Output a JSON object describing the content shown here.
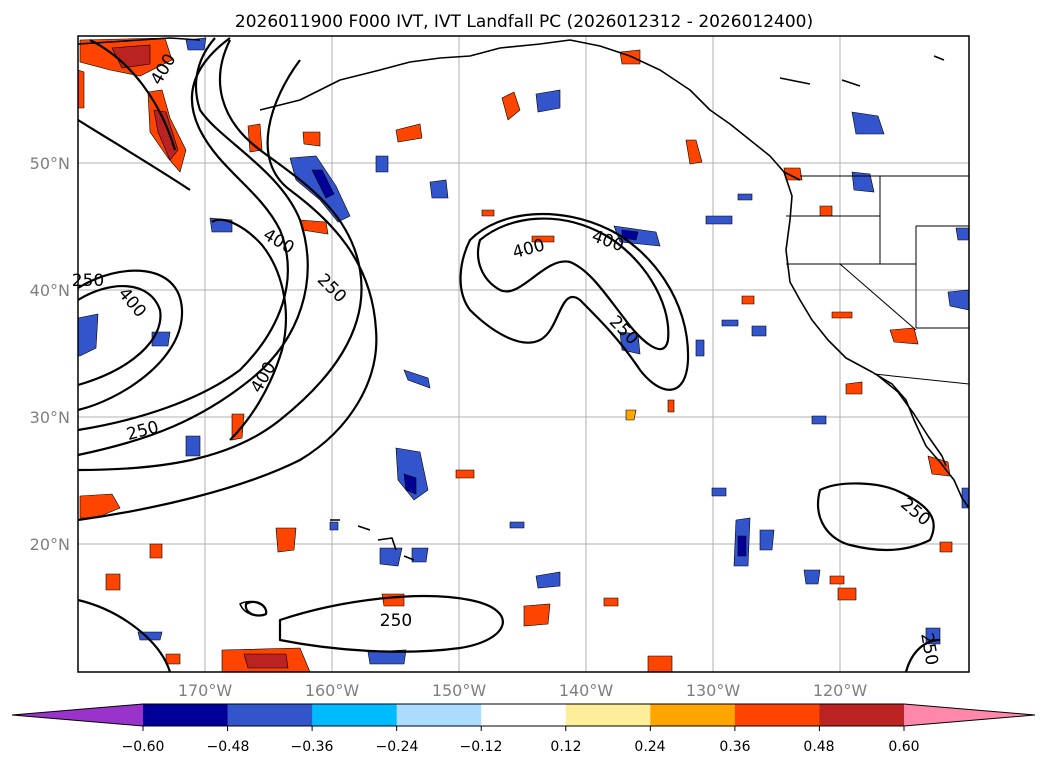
{
  "title": "2026011900 F000 IVT, IVT Landfall PC (2026012312 - 2026012400)",
  "map": {
    "lon_labels": [
      "170°W",
      "160°W",
      "150°W",
      "140°W",
      "130°W",
      "120°W"
    ],
    "lat_labels": [
      "50°N",
      "40°N",
      "30°N",
      "20°N"
    ],
    "contour_labels": [
      "400",
      "400",
      "400",
      "400",
      "400",
      "400",
      "250",
      "250",
      "250",
      "250",
      "250",
      "250",
      "250"
    ]
  },
  "colorbar": {
    "colors": [
      "#9933cc",
      "#000099",
      "#3355cc",
      "#00bbff",
      "#aaddff",
      "#ffffff",
      "#ffee99",
      "#ffa500",
      "#ff4400",
      "#bb2222",
      "#ff88aa"
    ],
    "tick_labels": [
      "−0.60",
      "−0.48",
      "−0.36",
      "−0.24",
      "−0.12",
      "0.12",
      "0.24",
      "0.36",
      "0.48",
      "0.60"
    ]
  }
}
